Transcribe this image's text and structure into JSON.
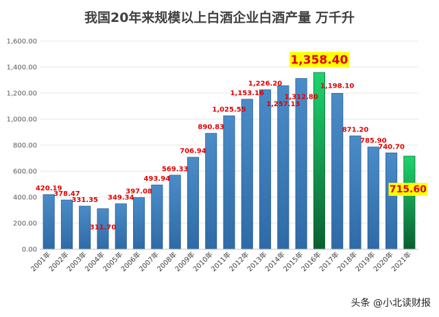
{
  "chart_data": {
    "type": "bar",
    "title": "我国20年来规模以上白酒企业白酒产量 万千升",
    "xlabel": "",
    "ylabel": "",
    "ylim": [
      0,
      1600
    ],
    "yticks": [
      "0.00",
      "200.00",
      "400.00",
      "600.00",
      "800.00",
      "1,000.00",
      "1,200.00",
      "1,400.00",
      "1,600.00"
    ],
    "grid": true,
    "categories": [
      "2001年",
      "2002年",
      "2003年",
      "2004年",
      "2005年",
      "2006年",
      "2007年",
      "2008年",
      "2009年",
      "2010年",
      "2011年",
      "2012年",
      "2013年",
      "2014年",
      "2015年",
      "2016年",
      "2017年",
      "2018年",
      "2019年",
      "2020年",
      "2021年"
    ],
    "values": [
      420.19,
      378.47,
      331.35,
      311.7,
      349.34,
      397.08,
      493.94,
      569.33,
      706.94,
      890.83,
      1025.55,
      1153.16,
      1226.2,
      1257.13,
      1312.8,
      1358.4,
      1198.1,
      871.2,
      785.9,
      740.7,
      715.6
    ],
    "labels": [
      "420.19",
      "378.47",
      "331.35",
      "311.70",
      "349.34",
      "397.08",
      "493.94",
      "569.33",
      "706.94",
      "890.83",
      "1,025.55",
      "1,153.16",
      "1,226.20",
      "1,257.13",
      "1,312.80",
      "1,358.40",
      "1,198.10",
      "871.20",
      "785.90",
      "740.70",
      "715.60"
    ],
    "highlighted": [
      "2016年",
      "2021年"
    ],
    "colors": {
      "bar": "#3d7ab8",
      "bar_dark": "#2a5f99",
      "highlight": "#16b35c",
      "highlight_dark": "#0b6b36",
      "label": "#e00000",
      "label_bg": "#ffff00"
    }
  },
  "watermark": {
    "text": "头条 @小北读财报"
  }
}
